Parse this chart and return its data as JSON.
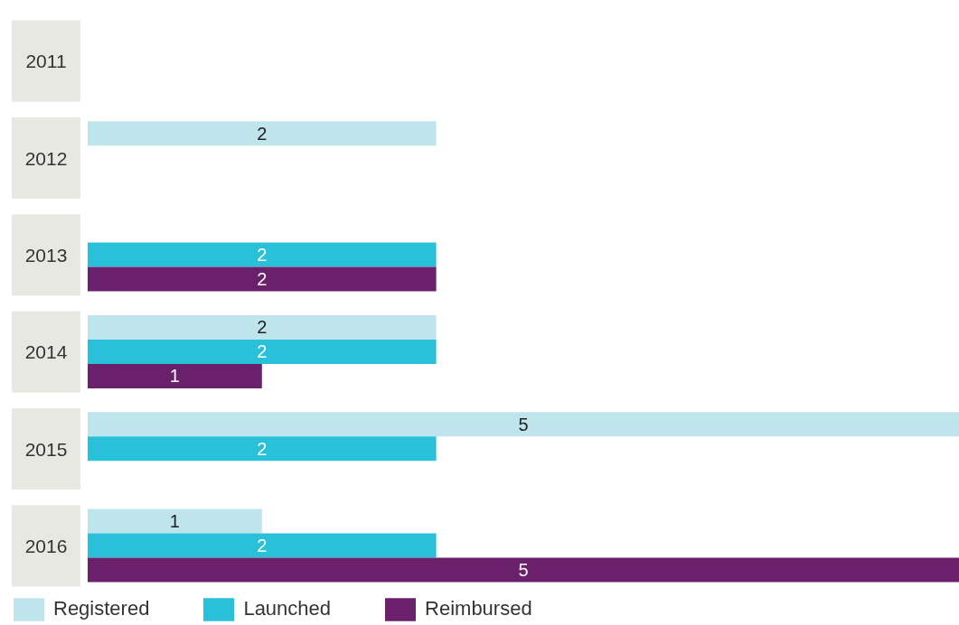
{
  "chart_data": {
    "type": "bar",
    "orientation": "horizontal",
    "categories": [
      "2011",
      "2012",
      "2013",
      "2014",
      "2015",
      "2016"
    ],
    "series": [
      {
        "name": "Registered",
        "color": "#bee5eb",
        "values": [
          null,
          2,
          null,
          2,
          5,
          1
        ]
      },
      {
        "name": "Launched",
        "color": "#29c0da",
        "values": [
          null,
          null,
          2,
          2,
          2,
          2
        ]
      },
      {
        "name": "Reimbursed",
        "color": "#6b206b",
        "values": [
          null,
          null,
          2,
          1,
          null,
          5
        ]
      }
    ],
    "xlim": [
      0,
      5
    ],
    "tick_labels": "y",
    "data_labels": true,
    "legend": "bottom",
    "grid": false
  }
}
